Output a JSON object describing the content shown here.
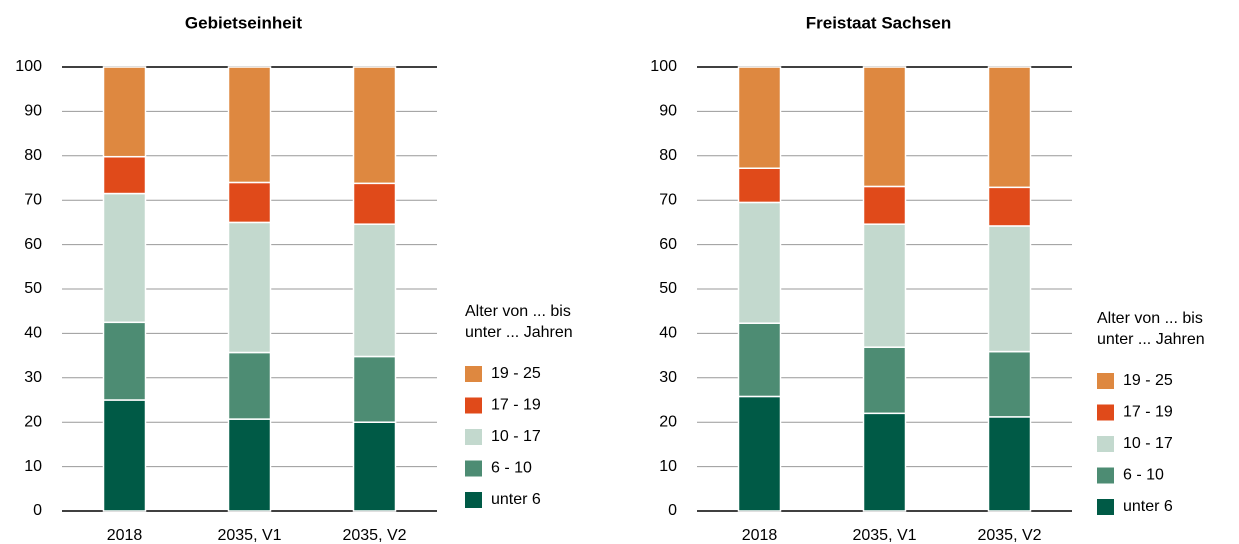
{
  "chart_data": [
    {
      "type": "bar",
      "stacked": true,
      "title": "Gebietseinheit",
      "categories": [
        "2018",
        "2035, V1",
        "2035, V2"
      ],
      "ylim": [
        0,
        100
      ],
      "yticks": [
        0,
        10,
        20,
        30,
        40,
        50,
        60,
        70,
        80,
        90,
        100
      ],
      "grid": true,
      "legend_title": [
        "Alter von ... bis",
        "unter ... Jahren"
      ],
      "legend": "right",
      "series": [
        {
          "name": "unter 6",
          "color": "#005a46",
          "values": [
            25,
            20.7,
            20
          ]
        },
        {
          "name": "6 - 10",
          "color": "#4d8c73",
          "values": [
            17.5,
            15,
            14.8
          ]
        },
        {
          "name": "10 - 17",
          "color": "#c3d9ce",
          "values": [
            29,
            29.3,
            29.8
          ]
        },
        {
          "name": "17 - 19",
          "color": "#e04a1a",
          "values": [
            8.3,
            9,
            9.2
          ]
        },
        {
          "name": "19 - 25",
          "color": "#de8840",
          "values": [
            20.2,
            26,
            26.2
          ]
        }
      ]
    },
    {
      "type": "bar",
      "stacked": true,
      "title": "Freistaat Sachsen",
      "categories": [
        "2018",
        "2035, V1",
        "2035, V2"
      ],
      "ylim": [
        0,
        100
      ],
      "yticks": [
        0,
        10,
        20,
        30,
        40,
        50,
        60,
        70,
        80,
        90,
        100
      ],
      "grid": true,
      "legend_title": [
        "Alter von ... bis",
        "unter ... Jahren"
      ],
      "legend": "right",
      "series": [
        {
          "name": "unter 6",
          "color": "#005a46",
          "values": [
            25.8,
            22,
            21.2
          ]
        },
        {
          "name": "6 - 10",
          "color": "#4d8c73",
          "values": [
            16.5,
            14.9,
            14.7
          ]
        },
        {
          "name": "10 - 17",
          "color": "#c3d9ce",
          "values": [
            27.2,
            27.7,
            28.3
          ]
        },
        {
          "name": "17 - 19",
          "color": "#e04a1a",
          "values": [
            7.7,
            8.5,
            8.7
          ]
        },
        {
          "name": "19 - 25",
          "color": "#de8840",
          "values": [
            22.8,
            26.9,
            27.1
          ]
        }
      ]
    }
  ]
}
